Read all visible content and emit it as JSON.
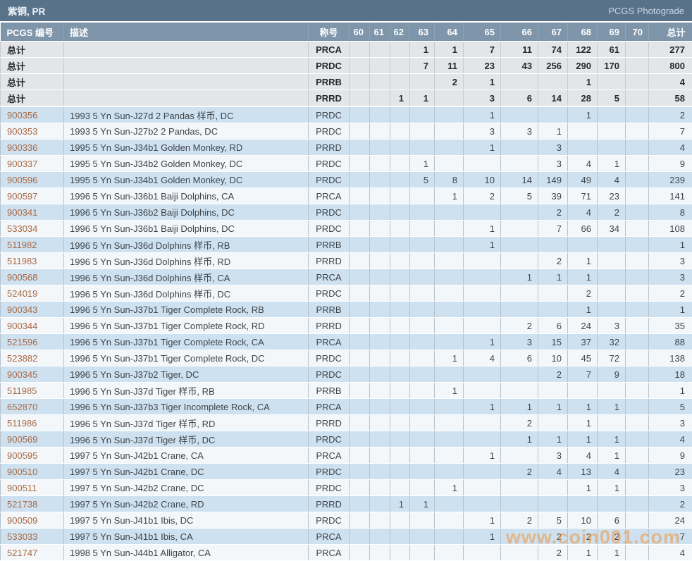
{
  "title_bar": {
    "title": "紫铜, PR",
    "photograde_link": "PCGS Photograde"
  },
  "watermark": "www.coin001.com",
  "colors": {
    "title_bar_bg": "#58728a",
    "header_bg": "#7e95aa",
    "summary_row_bg": "#e3e5e6",
    "data_row_blue": "#cee1f0",
    "data_row_white": "#f3f7fa",
    "pcgs_link": "#aa6a45",
    "watermark": "#ef953e"
  },
  "table": {
    "columns": [
      {
        "key": "pcgs",
        "label": "PCGS 编号"
      },
      {
        "key": "desc",
        "label": "描述"
      },
      {
        "key": "designation",
        "label": "称号"
      },
      {
        "key": "g60",
        "label": "60"
      },
      {
        "key": "g61",
        "label": "61"
      },
      {
        "key": "g62",
        "label": "62"
      },
      {
        "key": "g63",
        "label": "63"
      },
      {
        "key": "g64",
        "label": "64"
      },
      {
        "key": "g65",
        "label": "65"
      },
      {
        "key": "g66",
        "label": "66"
      },
      {
        "key": "g67",
        "label": "67"
      },
      {
        "key": "g68",
        "label": "68"
      },
      {
        "key": "g69",
        "label": "69"
      },
      {
        "key": "g70",
        "label": "70"
      },
      {
        "key": "total",
        "label": "总计"
      }
    ],
    "summary_rows": [
      {
        "label": "总计",
        "desc": "",
        "designation": "PRCA",
        "grades": [
          "",
          "",
          "",
          "1",
          "1",
          "7",
          "11",
          "74",
          "122",
          "61",
          ""
        ],
        "total": "277"
      },
      {
        "label": "总计",
        "desc": "",
        "designation": "PRDC",
        "grades": [
          "",
          "",
          "",
          "7",
          "11",
          "23",
          "43",
          "256",
          "290",
          "170",
          ""
        ],
        "total": "800"
      },
      {
        "label": "总计",
        "desc": "",
        "designation": "PRRB",
        "grades": [
          "",
          "",
          "",
          "",
          "2",
          "1",
          "",
          "",
          "1",
          "",
          ""
        ],
        "total": "4"
      },
      {
        "label": "总计",
        "desc": "",
        "designation": "PRRD",
        "grades": [
          "",
          "",
          "1",
          "1",
          "",
          "3",
          "6",
          "14",
          "28",
          "5",
          ""
        ],
        "total": "58"
      }
    ],
    "rows": [
      {
        "pcgs_no": "900356",
        "desc": "1993 5 Yn Sun-J27d 2 Pandas 样币, DC",
        "designation": "PRDC",
        "grades": [
          "",
          "",
          "",
          "",
          "",
          "1",
          "",
          "",
          "1",
          "",
          ""
        ],
        "total": "2"
      },
      {
        "pcgs_no": "900353",
        "desc": "1993 5 Yn Sun-J27b2 2 Pandas, DC",
        "designation": "PRDC",
        "grades": [
          "",
          "",
          "",
          "",
          "",
          "3",
          "3",
          "1",
          "",
          "",
          ""
        ],
        "total": "7"
      },
      {
        "pcgs_no": "900336",
        "desc": "1995 5 Yn Sun-J34b1 Golden Monkey, RD",
        "designation": "PRRD",
        "grades": [
          "",
          "",
          "",
          "",
          "",
          "1",
          "",
          "3",
          "",
          "",
          ""
        ],
        "total": "4"
      },
      {
        "pcgs_no": "900337",
        "desc": "1995 5 Yn Sun-J34b2 Golden Monkey, DC",
        "designation": "PRDC",
        "grades": [
          "",
          "",
          "",
          "1",
          "",
          "",
          "",
          "3",
          "4",
          "1",
          ""
        ],
        "total": "9"
      },
      {
        "pcgs_no": "900596",
        "desc": "1995 5 Yn Sun-J34b1 Golden Monkey, DC",
        "designation": "PRDC",
        "grades": [
          "",
          "",
          "",
          "5",
          "8",
          "10",
          "14",
          "149",
          "49",
          "4",
          ""
        ],
        "total": "239"
      },
      {
        "pcgs_no": "900597",
        "desc": "1996 5 Yn Sun-J36b1 Baiji Dolphins, CA",
        "designation": "PRCA",
        "grades": [
          "",
          "",
          "",
          "",
          "1",
          "2",
          "5",
          "39",
          "71",
          "23",
          ""
        ],
        "total": "141"
      },
      {
        "pcgs_no": "900341",
        "desc": "1996 5 Yn Sun-J36b2 Baiji Dolphins, DC",
        "designation": "PRDC",
        "grades": [
          "",
          "",
          "",
          "",
          "",
          "",
          "",
          "2",
          "4",
          "2",
          ""
        ],
        "total": "8"
      },
      {
        "pcgs_no": "533034",
        "desc": "1996 5 Yn Sun-J36b1 Baiji Dolphins, DC",
        "designation": "PRDC",
        "grades": [
          "",
          "",
          "",
          "",
          "",
          "1",
          "",
          "7",
          "66",
          "34",
          ""
        ],
        "total": "108"
      },
      {
        "pcgs_no": "511982",
        "desc": "1996 5 Yn Sun-J36d Dolphins 样币, RB",
        "designation": "PRRB",
        "grades": [
          "",
          "",
          "",
          "",
          "",
          "1",
          "",
          "",
          "",
          "",
          ""
        ],
        "total": "1"
      },
      {
        "pcgs_no": "511983",
        "desc": "1996 5 Yn Sun-J36d Dolphins 样币, RD",
        "designation": "PRRD",
        "grades": [
          "",
          "",
          "",
          "",
          "",
          "",
          "",
          "2",
          "1",
          "",
          ""
        ],
        "total": "3"
      },
      {
        "pcgs_no": "900568",
        "desc": "1996 5 Yn Sun-J36d Dolphins 样币, CA",
        "designation": "PRCA",
        "grades": [
          "",
          "",
          "",
          "",
          "",
          "",
          "1",
          "1",
          "1",
          "",
          ""
        ],
        "total": "3"
      },
      {
        "pcgs_no": "524019",
        "desc": "1996 5 Yn Sun-J36d Dolphins 样币, DC",
        "designation": "PRDC",
        "grades": [
          "",
          "",
          "",
          "",
          "",
          "",
          "",
          "",
          "2",
          "",
          ""
        ],
        "total": "2"
      },
      {
        "pcgs_no": "900343",
        "desc": "1996 5 Yn Sun-J37b1 Tiger Complete Rock, RB",
        "designation": "PRRB",
        "grades": [
          "",
          "",
          "",
          "",
          "",
          "",
          "",
          "",
          "1",
          "",
          ""
        ],
        "total": "1"
      },
      {
        "pcgs_no": "900344",
        "desc": "1996 5 Yn Sun-J37b1 Tiger Complete Rock, RD",
        "designation": "PRRD",
        "grades": [
          "",
          "",
          "",
          "",
          "",
          "",
          "2",
          "6",
          "24",
          "3",
          ""
        ],
        "total": "35"
      },
      {
        "pcgs_no": "521596",
        "desc": "1996 5 Yn Sun-J37b1 Tiger Complete Rock, CA",
        "designation": "PRCA",
        "grades": [
          "",
          "",
          "",
          "",
          "",
          "1",
          "3",
          "15",
          "37",
          "32",
          ""
        ],
        "total": "88"
      },
      {
        "pcgs_no": "523882",
        "desc": "1996 5 Yn Sun-J37b1 Tiger Complete Rock, DC",
        "designation": "PRDC",
        "grades": [
          "",
          "",
          "",
          "",
          "1",
          "4",
          "6",
          "10",
          "45",
          "72",
          ""
        ],
        "total": "138"
      },
      {
        "pcgs_no": "900345",
        "desc": "1996 5 Yn Sun-J37b2 Tiger, DC",
        "designation": "PRDC",
        "grades": [
          "",
          "",
          "",
          "",
          "",
          "",
          "",
          "2",
          "7",
          "9",
          ""
        ],
        "total": "18"
      },
      {
        "pcgs_no": "511985",
        "desc": "1996 5 Yn Sun-J37d Tiger 样币, RB",
        "designation": "PRRB",
        "grades": [
          "",
          "",
          "",
          "",
          "1",
          "",
          "",
          "",
          "",
          "",
          ""
        ],
        "total": "1"
      },
      {
        "pcgs_no": "652870",
        "desc": "1996 5 Yn Sun-J37b3 Tiger Incomplete Rock, CA",
        "designation": "PRCA",
        "grades": [
          "",
          "",
          "",
          "",
          "",
          "1",
          "1",
          "1",
          "1",
          "1",
          ""
        ],
        "total": "5"
      },
      {
        "pcgs_no": "511986",
        "desc": "1996 5 Yn Sun-J37d Tiger 样币, RD",
        "designation": "PRRD",
        "grades": [
          "",
          "",
          "",
          "",
          "",
          "",
          "2",
          "",
          "1",
          "",
          ""
        ],
        "total": "3"
      },
      {
        "pcgs_no": "900569",
        "desc": "1996 5 Yn Sun-J37d Tiger 样币, DC",
        "designation": "PRDC",
        "grades": [
          "",
          "",
          "",
          "",
          "",
          "",
          "1",
          "1",
          "1",
          "1",
          ""
        ],
        "total": "4"
      },
      {
        "pcgs_no": "900595",
        "desc": "1997 5 Yn Sun-J42b1 Crane, CA",
        "designation": "PRCA",
        "grades": [
          "",
          "",
          "",
          "",
          "",
          "1",
          "",
          "3",
          "4",
          "1",
          ""
        ],
        "total": "9"
      },
      {
        "pcgs_no": "900510",
        "desc": "1997 5 Yn Sun-J42b1 Crane, DC",
        "designation": "PRDC",
        "grades": [
          "",
          "",
          "",
          "",
          "",
          "",
          "2",
          "4",
          "13",
          "4",
          ""
        ],
        "total": "23"
      },
      {
        "pcgs_no": "900511",
        "desc": "1997 5 Yn Sun-J42b2 Crane, DC",
        "designation": "PRDC",
        "grades": [
          "",
          "",
          "",
          "",
          "1",
          "",
          "",
          "",
          "1",
          "1",
          ""
        ],
        "total": "3"
      },
      {
        "pcgs_no": "521738",
        "desc": "1997 5 Yn Sun-J42b2 Crane, RD",
        "designation": "PRRD",
        "grades": [
          "",
          "",
          "1",
          "1",
          "",
          "",
          "",
          "",
          "",
          "",
          ""
        ],
        "total": "2"
      },
      {
        "pcgs_no": "900509",
        "desc": "1997 5 Yn Sun-J41b1 Ibis, DC",
        "designation": "PRDC",
        "grades": [
          "",
          "",
          "",
          "",
          "",
          "1",
          "2",
          "5",
          "10",
          "6",
          ""
        ],
        "total": "24"
      },
      {
        "pcgs_no": "533033",
        "desc": "1997 5 Yn Sun-J41b1 Ibis, CA",
        "designation": "PRCA",
        "grades": [
          "",
          "",
          "",
          "",
          "",
          "1",
          "",
          "2",
          "2",
          "2",
          ""
        ],
        "total": "7"
      },
      {
        "pcgs_no": "521747",
        "desc": "1998 5 Yn Sun-J44b1 Alligator, CA",
        "designation": "PRCA",
        "grades": [
          "",
          "",
          "",
          "",
          "",
          "",
          "",
          "2",
          "1",
          "1",
          ""
        ],
        "total": "4"
      }
    ]
  }
}
